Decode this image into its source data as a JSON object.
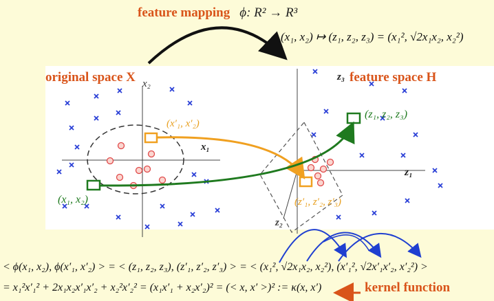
{
  "header": {
    "title": "feature mapping",
    "map_signature": "ϕ:   R²   →   R³",
    "map_formula": "(x₁, x₂) ↦ (z₁, z₂, z₃) = (x₁², √2x₁x₂, x₂²)"
  },
  "left_space": {
    "label": "original space X",
    "axis_x1": "x₁",
    "axis_x2": "x₂",
    "point_orange": "(x′₁, x′₂)",
    "point_green": "(x₁, x₂)"
  },
  "right_space": {
    "label": "feature space H",
    "axis_z1": "z₁",
    "axis_z2": "z₂",
    "axis_z3": "z₃",
    "point_orange": "(z′₁, z′₂, z′₃)",
    "point_green": "(z₁, z₂, z₃)"
  },
  "equations": {
    "inner_product": "< ϕ(x₁, x₂), ϕ(x′₁, x′₂) > = < (z₁, z₂, z₃), (z′₁, z′₂, z′₃) > = < (x₁², √2x₁x₂, x₂²), (x′₁², √2x′₁x′₂, x′₂²) >",
    "expansion": "= x₁²x′₁² + 2x₁x₂x′₁x′₂ + x₂²x′₂² = (x₁x′₁ + x₂x′₂)² = (< x, x′ >)² := κ(x, x′)",
    "kernel_label": "kernel function"
  },
  "colors": {
    "title": "#d9541a",
    "blue_cross": "#2a3fd6",
    "red_dot": "#e04848",
    "orange": "#f0a020",
    "green": "#1f7a1f",
    "blue_curves": "#1f3fd0"
  }
}
